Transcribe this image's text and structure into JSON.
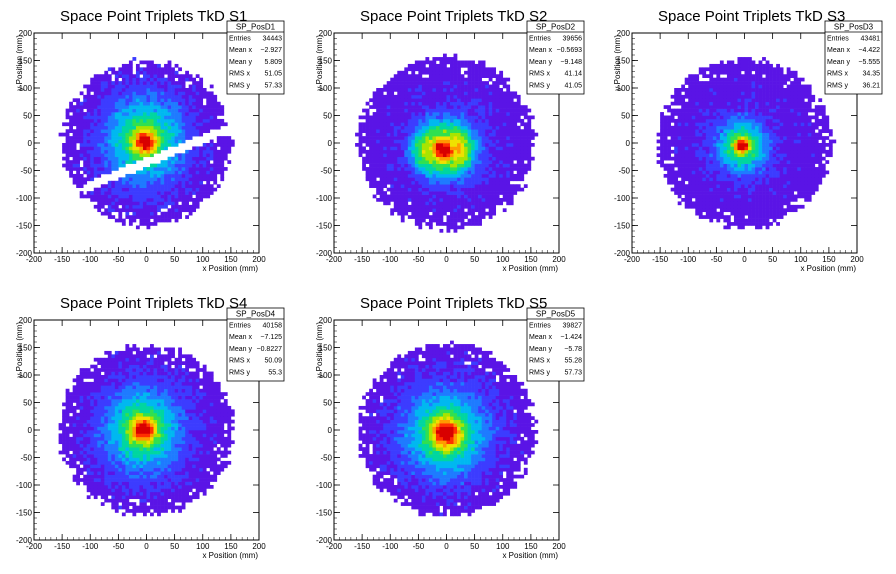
{
  "chart_data": [
    {
      "type": "heatmap",
      "title": "Space Point Triplets TkD S1",
      "xlabel": "x Position (mm)",
      "ylabel": "y Position (mm)",
      "xlim": [
        -200,
        200
      ],
      "ylim": [
        -200,
        200
      ],
      "xticks": [
        -200,
        -150,
        -100,
        -50,
        0,
        50,
        100,
        150,
        200
      ],
      "yticks": [
        -200,
        -150,
        -100,
        -50,
        0,
        50,
        100,
        150,
        200
      ],
      "stats": {
        "name": "SP_PosD1",
        "rows": [
          {
            "label": "Entries",
            "value": "34443"
          },
          {
            "label": "Mean x",
            "value": "−2.927"
          },
          {
            "label": "Mean y",
            "value": "5.809"
          },
          {
            "label": "RMS x",
            "value": "51.05"
          },
          {
            "label": "RMS y",
            "value": "57.33"
          }
        ]
      },
      "shape": {
        "cx": -2.927,
        "cy": 5.809,
        "sx": 51.05,
        "sy": 57.33,
        "core": 14,
        "core_cx": -2,
        "core_cy": 2,
        "radius": 150,
        "gap": true,
        "dual_core": false
      }
    },
    {
      "type": "heatmap",
      "title": "Space Point Triplets TkD S2",
      "xlabel": "x Position (mm)",
      "ylabel": "y Position (mm)",
      "xlim": [
        -200,
        200
      ],
      "ylim": [
        -200,
        200
      ],
      "xticks": [
        -200,
        -150,
        -100,
        -50,
        0,
        50,
        100,
        150,
        200
      ],
      "yticks": [
        -200,
        -150,
        -100,
        -50,
        0,
        50,
        100,
        150,
        200
      ],
      "stats": {
        "name": "SP_PosD2",
        "rows": [
          {
            "label": "Entries",
            "value": "39656"
          },
          {
            "label": "Mean x",
            "value": "−0.5693"
          },
          {
            "label": "Mean y",
            "value": "−9.148"
          },
          {
            "label": "RMS x",
            "value": "41.14"
          },
          {
            "label": "RMS y",
            "value": "41.05"
          }
        ]
      },
      "shape": {
        "cx": -0.5693,
        "cy": -9.148,
        "sx": 41.14,
        "sy": 41.05,
        "core": 16,
        "core_cx": -8,
        "core_cy": -12,
        "radius": 158,
        "gap": false,
        "dual_core": true
      }
    },
    {
      "type": "heatmap",
      "title": "Space Point Triplets TkD S3",
      "xlabel": "x Position (mm)",
      "ylabel": "y Position (mm)",
      "xlim": [
        -200,
        200
      ],
      "ylim": [
        -200,
        200
      ],
      "xticks": [
        -200,
        -150,
        -100,
        -50,
        0,
        50,
        100,
        150,
        200
      ],
      "yticks": [
        -200,
        -150,
        -100,
        -50,
        0,
        50,
        100,
        150,
        200
      ],
      "stats": {
        "name": "SP_PosD3",
        "rows": [
          {
            "label": "Entries",
            "value": "43481"
          },
          {
            "label": "Mean x",
            "value": "−4.422"
          },
          {
            "label": "Mean y",
            "value": "−5.555"
          },
          {
            "label": "RMS x",
            "value": "34.35"
          },
          {
            "label": "RMS y",
            "value": "36.21"
          }
        ]
      },
      "shape": {
        "cx": -4.422,
        "cy": -5.555,
        "sx": 34.35,
        "sy": 36.21,
        "core": 9,
        "core_cx": -4,
        "core_cy": -4,
        "radius": 155,
        "gap": false,
        "dual_core": false
      }
    },
    {
      "type": "heatmap",
      "title": "Space Point Triplets TkD S4",
      "xlabel": "x Position (mm)",
      "ylabel": "y Position (mm)",
      "xlim": [
        -200,
        200
      ],
      "ylim": [
        -200,
        200
      ],
      "xticks": [
        -200,
        -150,
        -100,
        -50,
        0,
        50,
        100,
        150,
        200
      ],
      "yticks": [
        -200,
        -150,
        -100,
        -50,
        0,
        50,
        100,
        150,
        200
      ],
      "stats": {
        "name": "SP_PosD4",
        "rows": [
          {
            "label": "Entries",
            "value": "40158"
          },
          {
            "label": "Mean x",
            "value": "−7.125"
          },
          {
            "label": "Mean y",
            "value": "−0.8227"
          },
          {
            "label": "RMS x",
            "value": "50.09"
          },
          {
            "label": "RMS y",
            "value": "55.3"
          }
        ]
      },
      "shape": {
        "cx": -7.125,
        "cy": -0.8227,
        "sx": 50.09,
        "sy": 55.3,
        "core": 15,
        "core_cx": -5,
        "core_cy": 2,
        "radius": 155,
        "gap": false,
        "dual_core": false
      }
    },
    {
      "type": "heatmap",
      "title": "Space Point Triplets TkD S5",
      "xlabel": "x Position (mm)",
      "ylabel": "y Position (mm)",
      "xlim": [
        -200,
        200
      ],
      "ylim": [
        -200,
        200
      ],
      "xticks": [
        -200,
        -150,
        -100,
        -50,
        0,
        50,
        100,
        150,
        200
      ],
      "yticks": [
        -200,
        -150,
        -100,
        -50,
        0,
        50,
        100,
        150,
        200
      ],
      "stats": {
        "name": "SP_PosD5",
        "rows": [
          {
            "label": "Entries",
            "value": "39827"
          },
          {
            "label": "Mean x",
            "value": "−1.424"
          },
          {
            "label": "Mean y",
            "value": "−5.78"
          },
          {
            "label": "RMS x",
            "value": "55.28"
          },
          {
            "label": "RMS y",
            "value": "57.73"
          }
        ]
      },
      "shape": {
        "cx": -1.424,
        "cy": -5.78,
        "sx": 55.28,
        "sy": 57.73,
        "core": 18,
        "core_cx": 0,
        "core_cy": -5,
        "radius": 158,
        "gap": false,
        "dual_core": false
      }
    }
  ]
}
